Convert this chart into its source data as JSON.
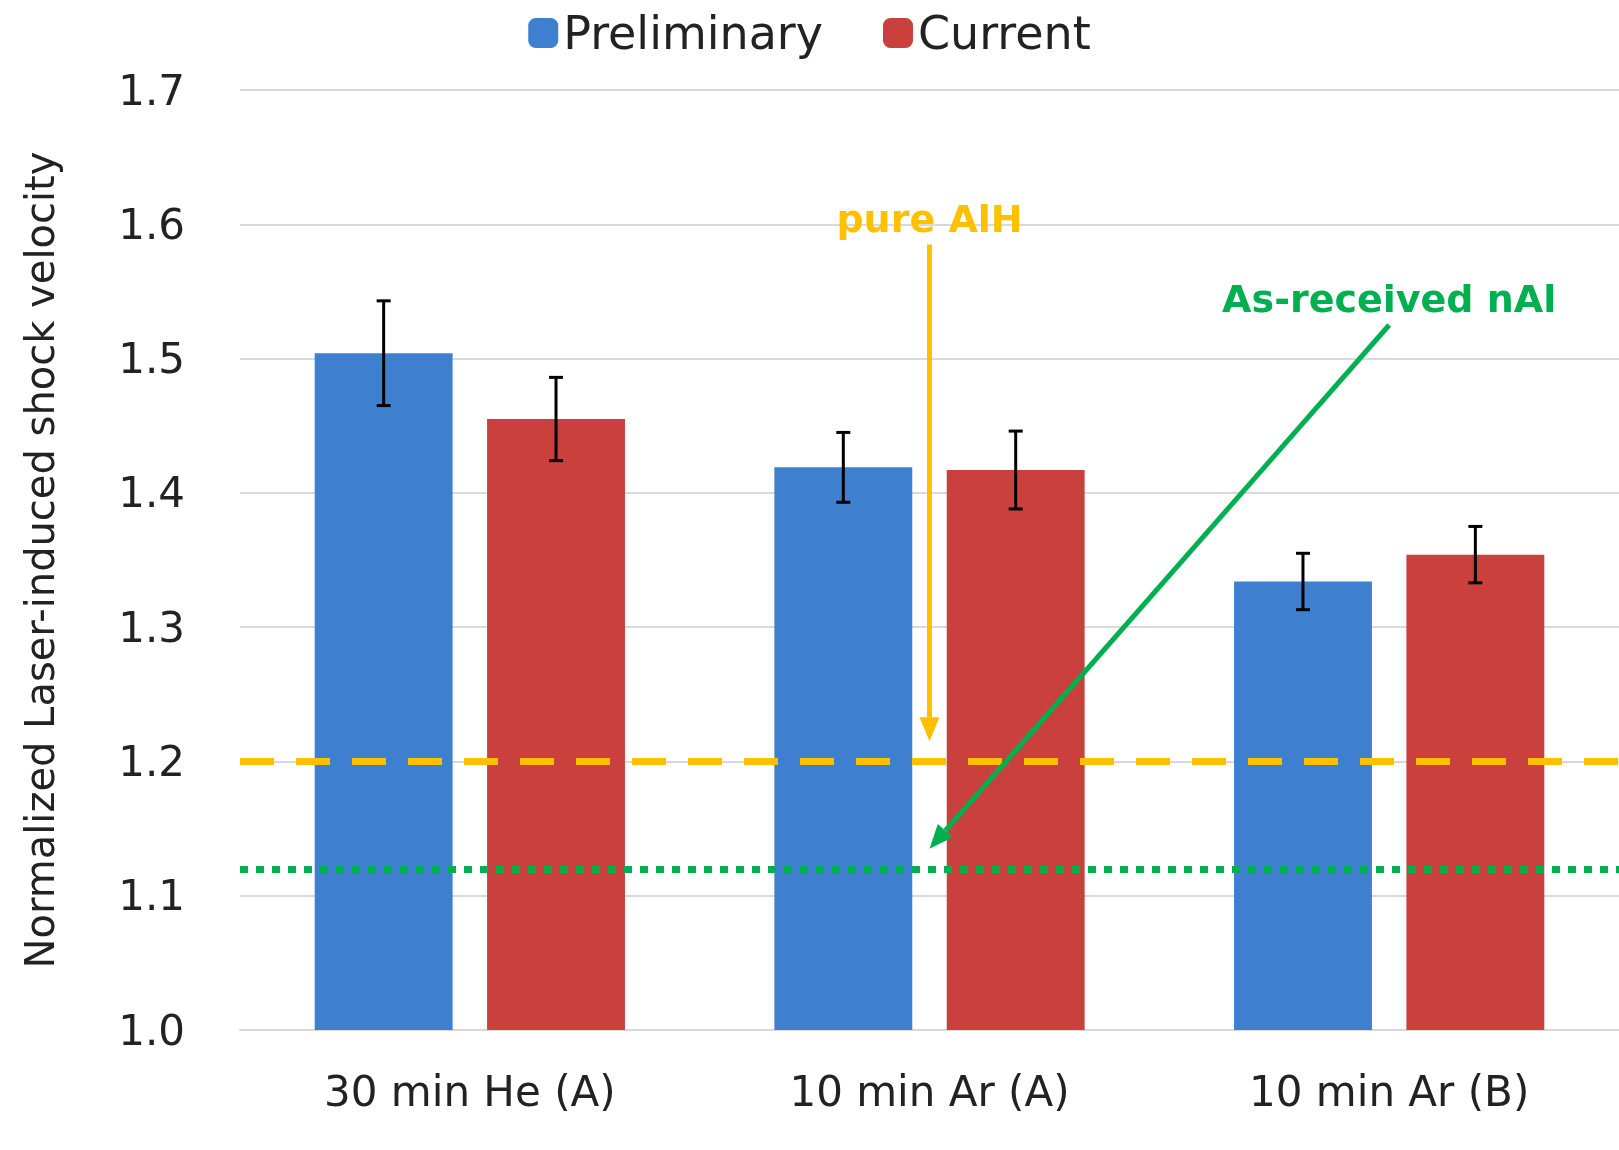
{
  "chart_data": {
    "type": "bar",
    "ylabel": "Normalized Laser-induced shock velocity",
    "categories": [
      "30 min He (A)",
      "10 min Ar (A)",
      "10 min Ar (B)"
    ],
    "series": [
      {
        "name": "Preliminary",
        "color": "#3f7fd0",
        "values": [
          1.504,
          1.419,
          1.334
        ],
        "errors": [
          0.039,
          0.026,
          0.021
        ]
      },
      {
        "name": "Current",
        "color": "#c9403d",
        "values": [
          1.455,
          1.417,
          1.354
        ],
        "errors": [
          0.031,
          0.029,
          0.021
        ]
      }
    ],
    "ylim": [
      1.0,
      1.7
    ],
    "yticks": [
      {
        "value": 1.0,
        "label": "1.0"
      },
      1.1,
      1.2,
      1.3,
      1.4,
      1.5,
      1.6,
      1.7
    ],
    "ref_lines": [
      {
        "axis": "y",
        "value": 1.2,
        "label": "pure AlH",
        "color": "#ffc000",
        "line_style": "dashed"
      },
      {
        "axis": "y",
        "value": 1.12,
        "label": "As-received nAl",
        "color": "#00b050",
        "line_style": "dotted"
      }
    ],
    "grid": "y",
    "legend": "top"
  }
}
